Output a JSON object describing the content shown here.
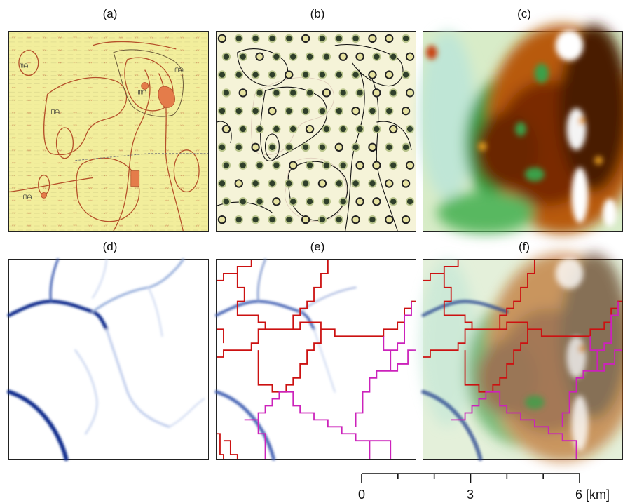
{
  "panels": [
    {
      "label": "(a)",
      "description_type": "scanned soil map"
    },
    {
      "label": "(b)",
      "description_type": "sample points over map"
    },
    {
      "label": "(c)",
      "description_type": "interpolated raster"
    },
    {
      "label": "(d)",
      "description_type": "flow accumulation"
    },
    {
      "label": "(e)",
      "description_type": "catchment boundaries"
    },
    {
      "label": "(f)",
      "description_type": "overlay"
    }
  ],
  "scale_bar": {
    "labels": [
      "0",
      "3",
      "6 [km]"
    ],
    "ticks_km": [
      0,
      1,
      2,
      3,
      4,
      5,
      6
    ]
  },
  "colors": {
    "map_bg": "#f3f0a0",
    "map_lines": "#b5502a",
    "point_fill": "#2f3f2a",
    "point_ring": "#c7c98a",
    "boundary_red": "#cc1111",
    "boundary_magenta": "#cc22bb",
    "flow_blue": "#0a2a8c"
  }
}
